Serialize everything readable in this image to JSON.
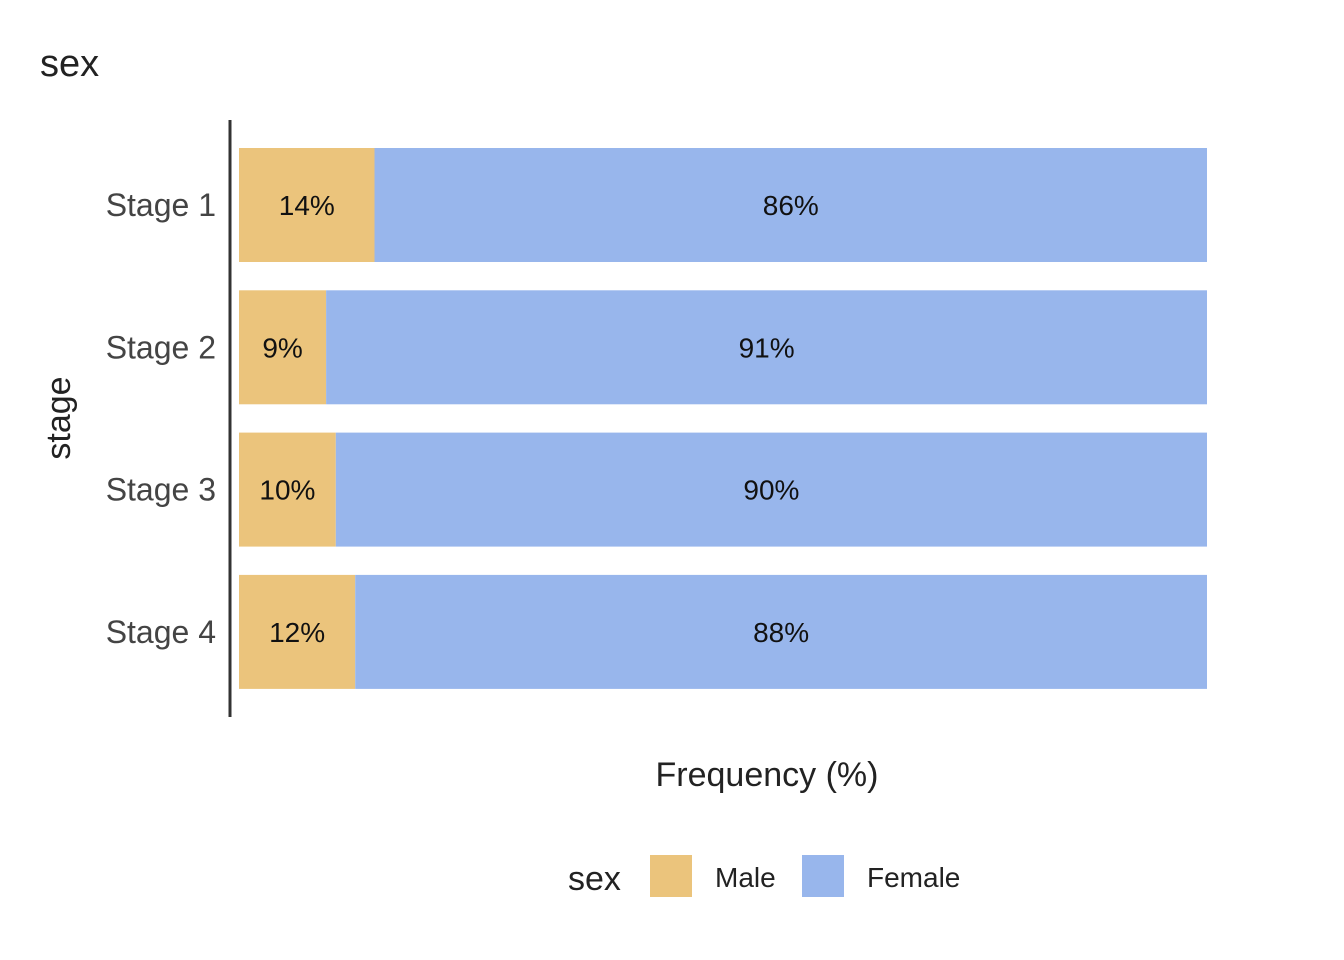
{
  "chart_data": {
    "type": "bar",
    "orientation": "horizontal",
    "stacked": true,
    "title": "sex",
    "ylabel": "stage",
    "xlabel": "Frequency (%)",
    "categories": [
      "Stage 1",
      "Stage 2",
      "Stage 3",
      "Stage 4"
    ],
    "series": [
      {
        "name": "Male",
        "color": "#EBC47C",
        "values": [
          14,
          9,
          10,
          12
        ],
        "labels": [
          "14%",
          "9%",
          "10%",
          "12%"
        ]
      },
      {
        "name": "Female",
        "color": "#98B6EC",
        "values": [
          86,
          91,
          90,
          88
        ],
        "labels": [
          "86%",
          "91%",
          "90%",
          "88%"
        ]
      }
    ],
    "xlim": [
      0,
      100
    ],
    "grid": false,
    "legend": {
      "title": "sex",
      "position": "bottom",
      "items": [
        "Male",
        "Female"
      ]
    }
  }
}
